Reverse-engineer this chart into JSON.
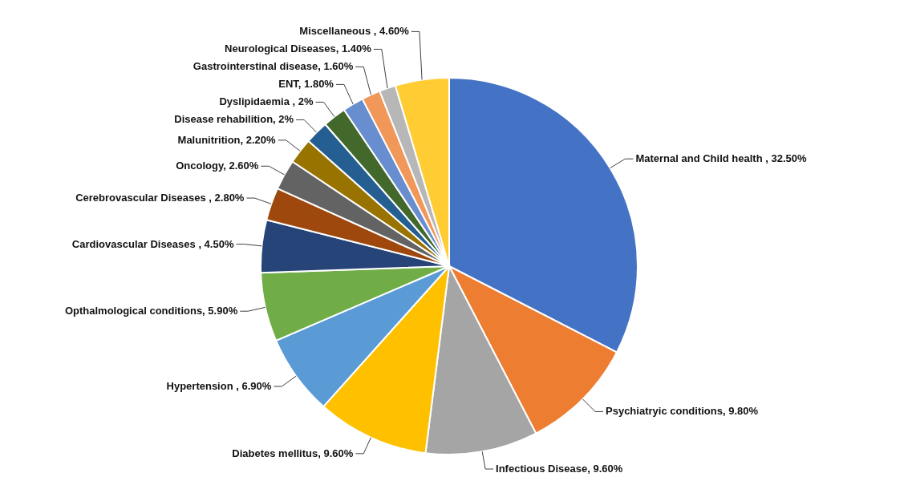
{
  "chart_data": {
    "type": "pie",
    "categories": [
      "Maternal and Child health ",
      "Psychiatryic conditions",
      "Infectious Disease",
      "Diabetes mellitus",
      "Hypertension ",
      "Opthalmological conditions",
      "Cardiovascular Diseases ",
      "Cerebrovascular Diseases ",
      "Oncology",
      "Malunitrition",
      "Disease rehabilition",
      "Dyslipidaemia ",
      "ENT",
      "Gastrointerstinal disease",
      "Neurological Diseases",
      "Miscellaneous "
    ],
    "values": [
      32.5,
      9.8,
      9.6,
      9.6,
      6.9,
      5.9,
      4.5,
      2.8,
      2.6,
      2.2,
      2,
      2,
      1.8,
      1.6,
      1.4,
      4.6
    ],
    "value_labels": [
      "32.50%",
      "9.80%",
      "9.60%",
      "9.60%",
      "6.90%",
      "5.90%",
      "4.50%",
      "2.80%",
      "2.60%",
      "2.20%",
      "2%",
      "2%",
      "1.80%",
      "1.60%",
      "1.40%",
      "4.60%"
    ],
    "colors": [
      "#4472c4",
      "#ed7d31",
      "#a5a5a5",
      "#ffc000",
      "#5b9bd5",
      "#70ad47",
      "#264478",
      "#9e480e",
      "#636363",
      "#997300",
      "#255e91",
      "#43682b",
      "#698ed0",
      "#f1975a",
      "#b7b7b7",
      "#ffcd33"
    ]
  }
}
